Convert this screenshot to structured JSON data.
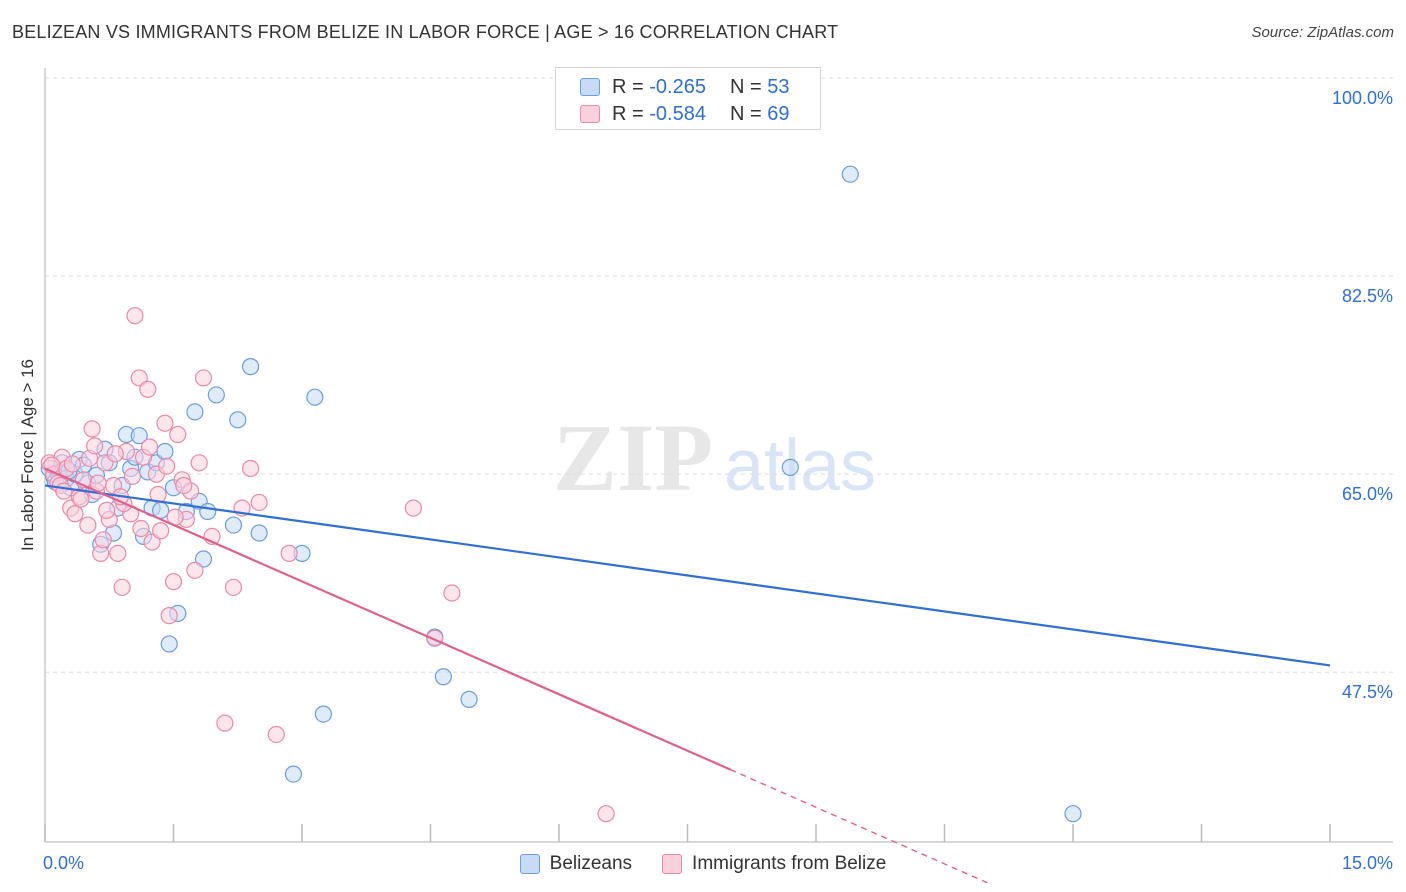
{
  "header": {
    "title": "BELIZEAN VS IMMIGRANTS FROM BELIZE IN LABOR FORCE | AGE > 16 CORRELATION CHART",
    "source": "Source: ZipAtlas.com"
  },
  "watermark": {
    "zip": "ZIP",
    "atlas": "atlas"
  },
  "legend": {
    "rows": [
      {
        "r_label": "R =",
        "r_value": "-0.265",
        "n_label": "N =",
        "n_value": "53"
      },
      {
        "r_label": "R =",
        "r_value": "-0.584",
        "n_label": "N =",
        "n_value": "69"
      }
    ]
  },
  "colors": {
    "blue_fill": "#c7dbf6",
    "blue_stroke": "#6a9ee0",
    "blue_line": "#2f6fd6",
    "pink_fill": "#fbd0dd",
    "pink_stroke": "#e98aa8",
    "pink_line": "#e0628c",
    "axis_text": "#2f6fd6",
    "grid": "#dddddd"
  },
  "chart_data": {
    "type": "scatter",
    "title": "BELIZEAN VS IMMIGRANTS FROM BELIZE IN LABOR FORCE | AGE > 16 CORRELATION CHART",
    "xlabel": "",
    "ylabel": "In Labor Force | Age > 16",
    "xlim": [
      0,
      15
    ],
    "ylim": [
      32.5,
      100
    ],
    "x_tick_labels": [
      "0.0%",
      "15.0%"
    ],
    "y_ticks": [
      47.5,
      65.0,
      82.5,
      100.0
    ],
    "y_tick_labels": [
      "47.5%",
      "65.0%",
      "82.5%",
      "100.0%"
    ],
    "grid": true,
    "legend_position": "bottom",
    "series": [
      {
        "name": "Belizeans",
        "r": -0.265,
        "n": 53,
        "trend": {
          "x0": 0.0,
          "y0": 64.0,
          "x1": 15.0,
          "y1": 48.1
        },
        "points": [
          [
            0.05,
            65.5
          ],
          [
            0.1,
            64.8
          ],
          [
            0.15,
            65.2
          ],
          [
            0.2,
            66.0
          ],
          [
            0.25,
            64.6
          ],
          [
            0.3,
            63.8
          ],
          [
            0.35,
            65.0
          ],
          [
            0.4,
            66.3
          ],
          [
            0.45,
            65.8
          ],
          [
            0.5,
            64.2
          ],
          [
            0.55,
            63.2
          ],
          [
            0.6,
            64.9
          ],
          [
            0.65,
            58.8
          ],
          [
            0.7,
            67.2
          ],
          [
            0.75,
            66.0
          ],
          [
            0.8,
            59.8
          ],
          [
            0.85,
            62.0
          ],
          [
            0.9,
            64.0
          ],
          [
            0.95,
            68.5
          ],
          [
            1.0,
            65.5
          ],
          [
            1.05,
            66.5
          ],
          [
            1.1,
            68.4
          ],
          [
            1.15,
            59.5
          ],
          [
            1.2,
            65.2
          ],
          [
            1.25,
            62.0
          ],
          [
            1.3,
            66.0
          ],
          [
            1.35,
            61.8
          ],
          [
            1.4,
            67.0
          ],
          [
            1.45,
            50.0
          ],
          [
            1.5,
            63.8
          ],
          [
            1.55,
            52.7
          ],
          [
            1.65,
            61.7
          ],
          [
            1.75,
            70.5
          ],
          [
            1.8,
            62.6
          ],
          [
            1.85,
            57.5
          ],
          [
            1.9,
            61.7
          ],
          [
            2.0,
            72.0
          ],
          [
            2.2,
            60.5
          ],
          [
            2.25,
            69.8
          ],
          [
            2.4,
            74.5
          ],
          [
            2.5,
            59.8
          ],
          [
            2.9,
            38.5
          ],
          [
            3.0,
            58.0
          ],
          [
            3.15,
            71.8
          ],
          [
            3.25,
            43.8
          ],
          [
            4.55,
            50.6
          ],
          [
            4.65,
            47.1
          ],
          [
            4.95,
            45.1
          ],
          [
            8.7,
            65.6
          ],
          [
            9.4,
            91.5
          ],
          [
            12.0,
            35.0
          ],
          [
            0.12,
            64.3
          ],
          [
            0.28,
            65.3
          ]
        ]
      },
      {
        "name": "Immigrants from Belize",
        "r": -0.584,
        "n": 69,
        "trend": {
          "x0": 0.0,
          "y0": 65.5,
          "x1": 8.0,
          "y1": 38.9,
          "dash_x1": 11.0,
          "dash_y1": 28.9
        },
        "points": [
          [
            0.05,
            66.0
          ],
          [
            0.1,
            65.0
          ],
          [
            0.15,
            64.2
          ],
          [
            0.2,
            66.5
          ],
          [
            0.25,
            65.5
          ],
          [
            0.3,
            62.0
          ],
          [
            0.35,
            61.5
          ],
          [
            0.4,
            63.0
          ],
          [
            0.45,
            64.5
          ],
          [
            0.5,
            60.5
          ],
          [
            0.55,
            69.0
          ],
          [
            0.6,
            63.5
          ],
          [
            0.65,
            58.0
          ],
          [
            0.7,
            66.0
          ],
          [
            0.75,
            61.0
          ],
          [
            0.8,
            64.0
          ],
          [
            0.85,
            58.0
          ],
          [
            0.9,
            55.0
          ],
          [
            0.95,
            67.0
          ],
          [
            1.0,
            61.5
          ],
          [
            1.05,
            79.0
          ],
          [
            1.1,
            73.5
          ],
          [
            1.15,
            66.5
          ],
          [
            1.2,
            72.5
          ],
          [
            1.25,
            59.0
          ],
          [
            1.3,
            65.0
          ],
          [
            1.35,
            60.0
          ],
          [
            1.4,
            69.5
          ],
          [
            1.45,
            52.5
          ],
          [
            1.5,
            55.5
          ],
          [
            1.55,
            68.5
          ],
          [
            1.6,
            64.5
          ],
          [
            1.65,
            61.0
          ],
          [
            1.7,
            63.5
          ],
          [
            1.75,
            56.5
          ],
          [
            1.8,
            66.0
          ],
          [
            1.85,
            73.5
          ],
          [
            1.95,
            59.5
          ],
          [
            2.1,
            43.0
          ],
          [
            2.2,
            55.0
          ],
          [
            2.3,
            62.0
          ],
          [
            2.4,
            65.5
          ],
          [
            2.5,
            62.5
          ],
          [
            2.7,
            42.0
          ],
          [
            2.85,
            58.0
          ],
          [
            4.3,
            62.0
          ],
          [
            4.55,
            50.5
          ],
          [
            4.75,
            54.5
          ],
          [
            6.55,
            35.0
          ],
          [
            0.08,
            65.8
          ],
          [
            0.18,
            64.0
          ],
          [
            0.22,
            63.5
          ],
          [
            0.32,
            65.9
          ],
          [
            0.42,
            62.8
          ],
          [
            0.52,
            66.4
          ],
          [
            0.62,
            64.2
          ],
          [
            0.72,
            61.8
          ],
          [
            0.82,
            66.8
          ],
          [
            0.92,
            62.4
          ],
          [
            1.02,
            64.8
          ],
          [
            1.12,
            60.2
          ],
          [
            1.22,
            67.4
          ],
          [
            1.32,
            63.2
          ],
          [
            1.42,
            65.7
          ],
          [
            1.52,
            61.2
          ],
          [
            1.62,
            64.0
          ],
          [
            0.58,
            67.5
          ],
          [
            0.68,
            59.2
          ],
          [
            0.88,
            63.0
          ]
        ]
      }
    ]
  }
}
